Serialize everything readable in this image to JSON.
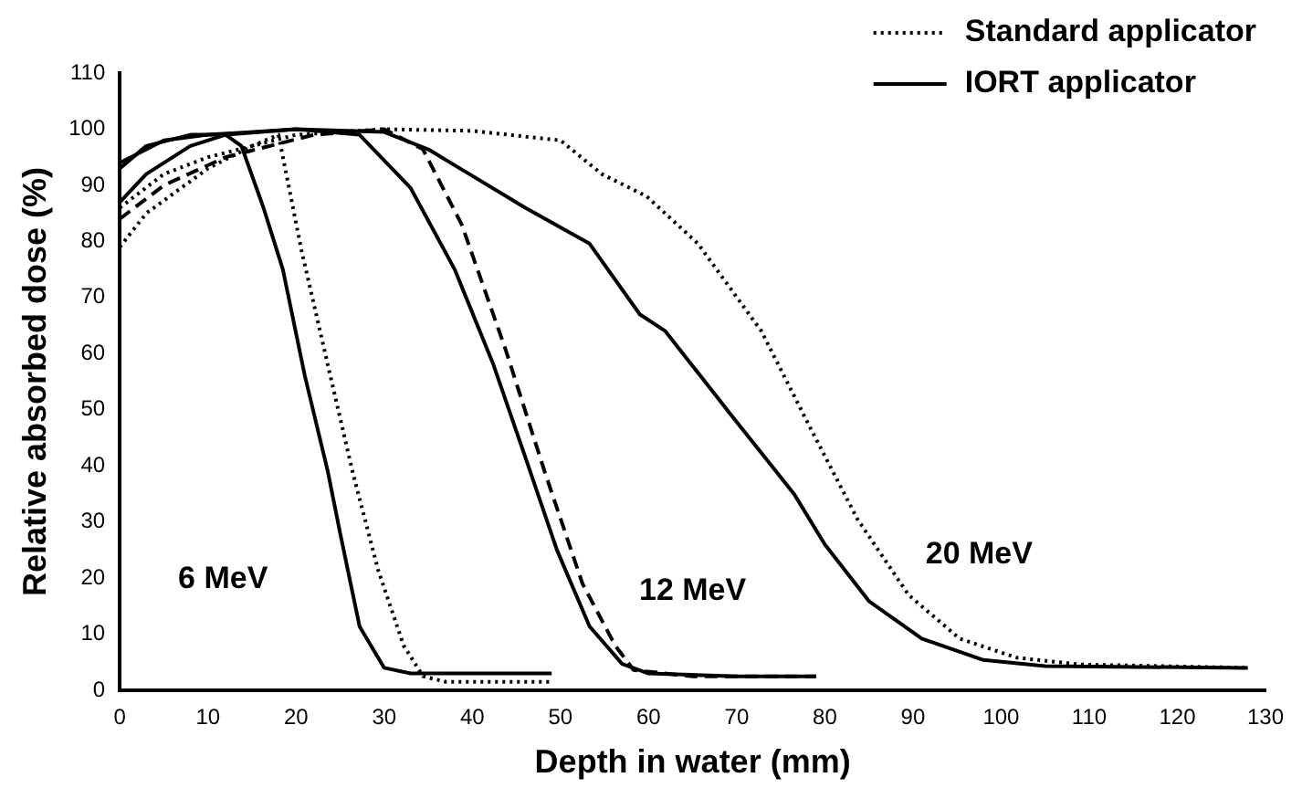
{
  "chart_data": {
    "type": "line",
    "xlabel": "Depth in water (mm)",
    "ylabel": "Relative absorbed dose (%)",
    "xlim": [
      0,
      130
    ],
    "xticks": [
      0,
      10,
      20,
      30,
      40,
      50,
      60,
      70,
      80,
      90,
      100,
      110,
      120,
      130
    ],
    "ylim": [
      0,
      110
    ],
    "yticks": [
      0,
      10,
      20,
      30,
      40,
      50,
      60,
      70,
      80,
      90,
      100,
      110
    ],
    "grid": false,
    "legend": "top right",
    "marker": "none",
    "series": [
      {
        "name": "Standard applicator",
        "color": "#000000",
        "line_style": "dotted",
        "x": [
          0,
          3,
          10,
          15,
          18,
          20.6,
          23.6,
          26.4,
          29.3,
          32.2,
          34.4,
          37,
          49
        ],
        "values": [
          79,
          85,
          93,
          97,
          99,
          78.5,
          58,
          39,
          21.5,
          8,
          2.5,
          1.5,
          1.5
        ]
      },
      {
        "name": "IORT applicator",
        "color": "#000000",
        "line_style": "solid",
        "x": [
          0,
          3,
          8,
          12,
          13.8,
          16.3,
          18.5,
          21,
          23.6,
          25,
          27.2,
          30,
          33,
          49
        ],
        "values": [
          93,
          97,
          99,
          99,
          97,
          86,
          75,
          56,
          39,
          28,
          11.4,
          4,
          3,
          3
        ]
      },
      {
        "color": "#000000",
        "line_style": "dashed",
        "x": [
          0,
          5,
          12,
          22,
          30,
          34.4,
          38.8,
          43.8,
          48.2,
          52.5,
          56.2,
          58.3,
          65,
          79
        ],
        "values": [
          84,
          90,
          95,
          99,
          100,
          96.4,
          83,
          60.6,
          39,
          19,
          8,
          3.6,
          2.5,
          2.5
        ]
      },
      {
        "color": "#000000",
        "line_style": "solid",
        "x": [
          0,
          3,
          8,
          12,
          20,
          27.2,
          33,
          38,
          42.4,
          46,
          49.6,
          53.3,
          57,
          60,
          70,
          79
        ],
        "values": [
          87,
          92,
          97,
          99,
          100,
          99,
          89.5,
          75,
          58,
          41.6,
          25,
          11.4,
          4.7,
          3,
          2.5,
          2.5
        ]
      },
      {
        "color": "#000000",
        "line_style": "dotted",
        "x": [
          0,
          5,
          10,
          20,
          30,
          40,
          50,
          54.7,
          59.8,
          65.6,
          72.8,
          78.6,
          83.7,
          89.5,
          95.3,
          101.8,
          109,
          128
        ],
        "values": [
          86,
          92,
          95,
          99,
          100,
          99.7,
          98,
          92,
          88,
          79.6,
          64,
          46,
          30.5,
          17,
          9.2,
          5.8,
          4.6,
          4
        ]
      },
      {
        "color": "#000000",
        "line_style": "solid",
        "x": [
          0,
          5,
          10,
          20,
          30,
          35,
          46,
          53.3,
          59,
          61.9,
          69.2,
          76.5,
          80,
          85,
          91,
          98,
          105,
          128
        ],
        "values": [
          94,
          98,
          99,
          100,
          99.5,
          96.4,
          86,
          79.6,
          67,
          64,
          49.4,
          35,
          26,
          15.9,
          9.2,
          5.4,
          4.3,
          4
        ]
      }
    ],
    "annotations": [
      "6 MeV",
      "12 MeV",
      "20 MeV"
    ]
  }
}
